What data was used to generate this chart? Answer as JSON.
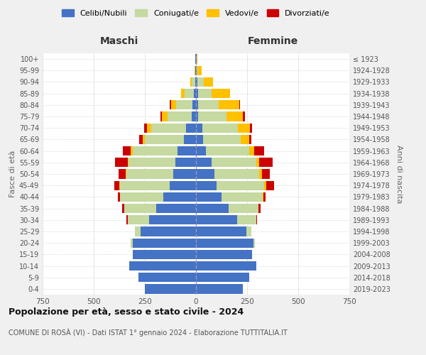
{
  "age_groups": [
    "0-4",
    "5-9",
    "10-14",
    "15-19",
    "20-24",
    "25-29",
    "30-34",
    "35-39",
    "40-44",
    "45-49",
    "50-54",
    "55-59",
    "60-64",
    "65-69",
    "70-74",
    "75-79",
    "80-84",
    "85-89",
    "90-94",
    "95-99",
    "100+"
  ],
  "birth_years": [
    "2019-2023",
    "2014-2018",
    "2009-2013",
    "2004-2008",
    "1999-2003",
    "1994-1998",
    "1989-1993",
    "1984-1988",
    "1979-1983",
    "1974-1978",
    "1969-1973",
    "1964-1968",
    "1959-1963",
    "1954-1958",
    "1949-1953",
    "1944-1948",
    "1939-1943",
    "1934-1938",
    "1929-1933",
    "1924-1928",
    "≤ 1923"
  ],
  "colors": {
    "celibi": "#4472c4",
    "coniugati": "#c5d9a0",
    "vedovi": "#ffc000",
    "divorziati": "#cc0000"
  },
  "males": {
    "celibi": [
      250,
      280,
      325,
      310,
      310,
      270,
      230,
      195,
      160,
      130,
      110,
      100,
      90,
      60,
      50,
      20,
      18,
      10,
      5,
      3,
      2
    ],
    "coniugati": [
      0,
      0,
      0,
      0,
      10,
      30,
      105,
      155,
      210,
      240,
      230,
      230,
      220,
      190,
      170,
      120,
      80,
      45,
      15,
      2,
      0
    ],
    "vedovi": [
      0,
      0,
      0,
      0,
      0,
      0,
      0,
      0,
      2,
      4,
      4,
      5,
      8,
      12,
      20,
      25,
      25,
      18,
      8,
      2,
      0
    ],
    "divorziati": [
      0,
      0,
      0,
      0,
      0,
      0,
      5,
      12,
      10,
      25,
      35,
      60,
      40,
      15,
      15,
      10,
      5,
      0,
      0,
      0,
      0
    ]
  },
  "females": {
    "nubili": [
      230,
      260,
      295,
      275,
      280,
      245,
      200,
      160,
      125,
      100,
      90,
      75,
      50,
      35,
      30,
      10,
      12,
      10,
      8,
      3,
      2
    ],
    "coniugati": [
      0,
      0,
      0,
      0,
      8,
      25,
      95,
      145,
      200,
      235,
      220,
      220,
      210,
      185,
      175,
      140,
      100,
      65,
      30,
      5,
      0
    ],
    "vedovi": [
      0,
      0,
      0,
      0,
      0,
      0,
      0,
      0,
      5,
      8,
      12,
      15,
      25,
      40,
      60,
      80,
      100,
      90,
      45,
      20,
      5
    ],
    "divorziati": [
      0,
      0,
      0,
      0,
      0,
      0,
      5,
      10,
      12,
      40,
      40,
      65,
      50,
      10,
      10,
      8,
      5,
      2,
      0,
      0,
      0
    ]
  },
  "title": "Popolazione per età, sesso e stato civile - 2024",
  "subtitle": "COMUNE DI ROSÀ (VI) - Dati ISTAT 1° gennaio 2024 - Elaborazione TUTTITALIA.IT",
  "xlabel_left": "Maschi",
  "xlabel_right": "Femmine",
  "ylabel_left": "Fasce di età",
  "ylabel_right": "Anni di nascita",
  "xlim": 750,
  "legend_labels": [
    "Celibi/Nubili",
    "Coniugati/e",
    "Vedovi/e",
    "Divorziati/e"
  ],
  "bg_color": "#f0f0f0",
  "bar_bg": "#ffffff"
}
